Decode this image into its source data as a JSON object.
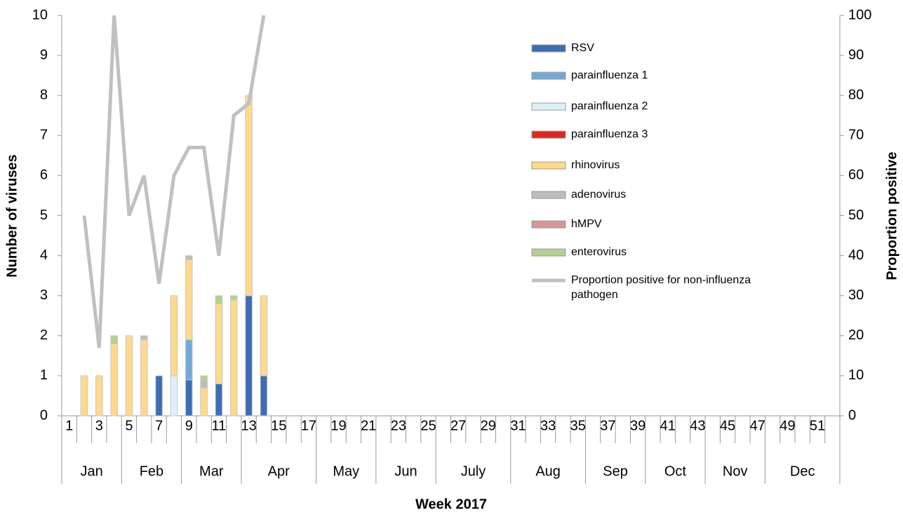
{
  "chart_data": {
    "type": "bar",
    "x_title": "Week 2017",
    "y_title": "Number of viruses",
    "y2_title": "Proportion positive",
    "categories": [
      "1",
      null,
      "3",
      null,
      "5",
      null,
      "7",
      null,
      "9",
      null,
      "11",
      null,
      "13",
      null,
      "15",
      null,
      "17",
      null,
      "19",
      null,
      "21",
      null,
      "23",
      null,
      "25",
      null,
      "27",
      null,
      "29",
      null,
      "31",
      null,
      "33",
      null,
      "35",
      null,
      "37",
      null,
      "39",
      null,
      "41",
      null,
      "43",
      null,
      "45",
      null,
      "47",
      null,
      "49",
      null,
      "51",
      null
    ],
    "x_groups": [
      "Jan",
      "Jan",
      "Jan",
      "Jan",
      "Feb",
      "Feb",
      "Feb",
      "Feb",
      "Mar",
      "Mar",
      "Mar",
      "Mar",
      "Apr",
      "Apr",
      "Apr",
      "Apr",
      "Apr",
      "May",
      "May",
      "May",
      "May",
      "Jun",
      "Jun",
      "Jun",
      "Jun",
      "July",
      "July",
      "July",
      "July",
      "July",
      "Aug",
      "Aug",
      "Aug",
      "Aug",
      "Aug",
      "Sep",
      "Sep",
      "Sep",
      "Sep",
      "Oct",
      "Oct",
      "Oct",
      "Oct",
      "Nov",
      "Nov",
      "Nov",
      "Nov",
      "Dec",
      "Dec",
      "Dec",
      "Dec",
      "Dec"
    ],
    "ylim": [
      0,
      10
    ],
    "yticks": [
      0,
      1,
      2,
      3,
      4,
      5,
      6,
      7,
      8,
      9,
      10
    ],
    "y2lim": [
      0,
      100
    ],
    "y2ticks": [
      0,
      10,
      20,
      30,
      40,
      50,
      60,
      70,
      80,
      90,
      100
    ],
    "stacked": true,
    "series": [
      {
        "name": "RSV",
        "color": "#3d6db5",
        "values": [
          null,
          0,
          0,
          0,
          0,
          0,
          1,
          0,
          0.9,
          0,
          0.8,
          0,
          3,
          1,
          null,
          null,
          null,
          null,
          null,
          null,
          null,
          null,
          null,
          null,
          null,
          null,
          null,
          null,
          null,
          null,
          null,
          null,
          null,
          null,
          null,
          null,
          null,
          null,
          null,
          null,
          null,
          null,
          null,
          null,
          null,
          null,
          null,
          null,
          null,
          null,
          null,
          null
        ]
      },
      {
        "name": "parainfluenza 1",
        "color": "#74a9d5",
        "values": [
          null,
          0,
          0,
          0,
          0,
          0,
          0,
          0,
          1,
          0,
          0,
          0,
          0,
          0,
          null,
          null,
          null,
          null,
          null,
          null,
          null,
          null,
          null,
          null,
          null,
          null,
          null,
          null,
          null,
          null,
          null,
          null,
          null,
          null,
          null,
          null,
          null,
          null,
          null,
          null,
          null,
          null,
          null,
          null,
          null,
          null,
          null,
          null,
          null,
          null,
          null,
          null
        ]
      },
      {
        "name": "parainfluenza 2",
        "color": "#dcf0f8",
        "values": [
          null,
          0,
          0,
          0,
          0,
          0,
          0,
          1,
          0,
          0,
          0,
          0,
          0,
          0,
          null,
          null,
          null,
          null,
          null,
          null,
          null,
          null,
          null,
          null,
          null,
          null,
          null,
          null,
          null,
          null,
          null,
          null,
          null,
          null,
          null,
          null,
          null,
          null,
          null,
          null,
          null,
          null,
          null,
          null,
          null,
          null,
          null,
          null,
          null,
          null,
          null,
          null
        ]
      },
      {
        "name": "parainfluenza 3",
        "color": "#e0281e",
        "values": [
          null,
          0,
          0,
          0,
          0,
          0,
          0,
          0,
          0,
          0,
          0,
          0,
          0,
          0,
          null,
          null,
          null,
          null,
          null,
          null,
          null,
          null,
          null,
          null,
          null,
          null,
          null,
          null,
          null,
          null,
          null,
          null,
          null,
          null,
          null,
          null,
          null,
          null,
          null,
          null,
          null,
          null,
          null,
          null,
          null,
          null,
          null,
          null,
          null,
          null,
          null,
          null
        ]
      },
      {
        "name": "rhinovirus",
        "color": "#fdd98c",
        "values": [
          null,
          1,
          1,
          1.8,
          2,
          1.9,
          0,
          2,
          2,
          0.7,
          2,
          2.9,
          5,
          2,
          null,
          null,
          null,
          null,
          null,
          null,
          null,
          null,
          null,
          null,
          null,
          null,
          null,
          null,
          null,
          null,
          null,
          null,
          null,
          null,
          null,
          null,
          null,
          null,
          null,
          null,
          null,
          null,
          null,
          null,
          null,
          null,
          null,
          null,
          null,
          null,
          null,
          null
        ]
      },
      {
        "name": "adenovirus",
        "color": "#bcbcbc",
        "values": [
          null,
          0,
          0,
          0,
          0,
          0.1,
          0,
          0,
          0.1,
          0.2,
          0,
          0,
          0,
          0,
          null,
          null,
          null,
          null,
          null,
          null,
          null,
          null,
          null,
          null,
          null,
          null,
          null,
          null,
          null,
          null,
          null,
          null,
          null,
          null,
          null,
          null,
          null,
          null,
          null,
          null,
          null,
          null,
          null,
          null,
          null,
          null,
          null,
          null,
          null,
          null,
          null,
          null
        ]
      },
      {
        "name": "hMPV",
        "color": "#d99594",
        "values": [
          null,
          0,
          0,
          0,
          0,
          0,
          0,
          0,
          0,
          0,
          0,
          0,
          0,
          0,
          null,
          null,
          null,
          null,
          null,
          null,
          null,
          null,
          null,
          null,
          null,
          null,
          null,
          null,
          null,
          null,
          null,
          null,
          null,
          null,
          null,
          null,
          null,
          null,
          null,
          null,
          null,
          null,
          null,
          null,
          null,
          null,
          null,
          null,
          null,
          null,
          null,
          null
        ]
      },
      {
        "name": "enterovirus",
        "color": "#b4d090",
        "values": [
          null,
          0,
          0,
          0.2,
          0,
          0,
          0,
          0,
          0,
          0.1,
          0.2,
          0.1,
          0,
          0,
          null,
          null,
          null,
          null,
          null,
          null,
          null,
          null,
          null,
          null,
          null,
          null,
          null,
          null,
          null,
          null,
          null,
          null,
          null,
          null,
          null,
          null,
          null,
          null,
          null,
          null,
          null,
          null,
          null,
          null,
          null,
          null,
          null,
          null,
          null,
          null,
          null,
          null
        ]
      },
      {
        "name": "Proportion positive for non-influenza pathogen",
        "type": "line",
        "axis": "y2",
        "color": "#c0c0c0",
        "values": [
          null,
          50,
          17,
          100,
          50,
          60,
          33,
          60,
          67,
          67,
          40,
          75,
          78,
          100,
          null,
          null,
          null,
          null,
          null,
          null,
          null,
          null,
          null,
          null,
          null,
          null,
          null,
          null,
          null,
          null,
          null,
          null,
          null,
          null,
          null,
          null,
          null,
          null,
          null,
          null,
          null,
          null,
          null,
          null,
          null,
          null,
          null,
          null,
          null,
          null,
          null,
          null
        ]
      }
    ]
  }
}
